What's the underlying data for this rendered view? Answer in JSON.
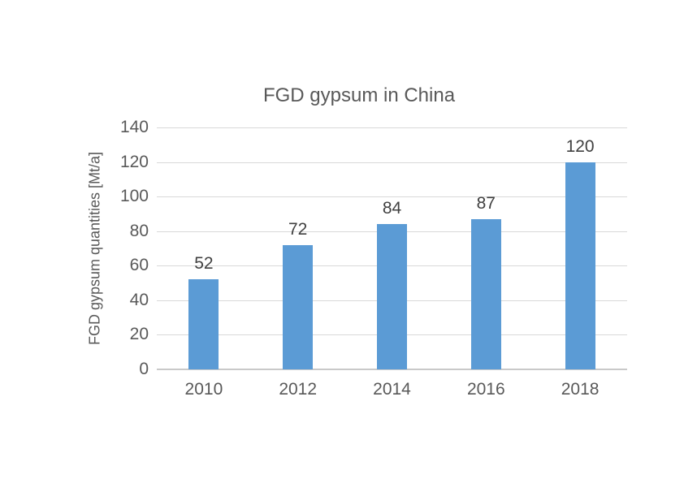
{
  "chart_data": {
    "type": "bar",
    "title": "FGD gypsum in China",
    "xlabel": "",
    "ylabel": "FGD gypsum quantities [Mt/a]",
    "categories": [
      "2010",
      "2012",
      "2014",
      "2016",
      "2018"
    ],
    "values": [
      52,
      72,
      84,
      87,
      120
    ],
    "data_labels_shown": true,
    "ylim": [
      0,
      140
    ],
    "ytick_step": 20,
    "ytick_labels": [
      "0",
      "20",
      "40",
      "60",
      "80",
      "100",
      "120",
      "140"
    ],
    "grid": "horizontal",
    "legend": "none",
    "colors": {
      "bar": "#5b9bd5",
      "gridline": "#d9d9d9",
      "axis_line": "#c9c9c9",
      "title_text": "#595959",
      "tick_text": "#595959",
      "data_label_text": "#404040",
      "background": "#ffffff"
    }
  }
}
